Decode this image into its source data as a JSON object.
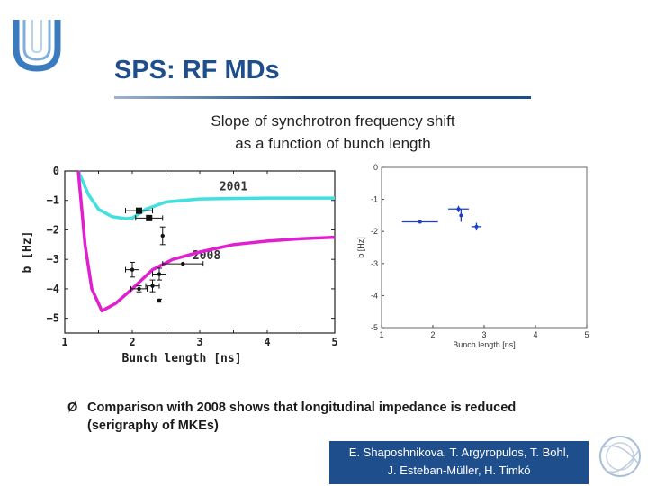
{
  "slide": {
    "title": "SPS: RF MDs",
    "subtitle_line1": "Slope of synchrotron frequency shift",
    "subtitle_line2": "as a function of bunch length",
    "bullet_marker": "Ø",
    "bullet_line1": "Comparison with 2008  shows that longitudinal impedance is reduced",
    "bullet_line2": "(serigraphy of MKEs)",
    "authors_line1": "E. Shaposhnikova, T. Argyropulos, T. Bohl,",
    "authors_line2": "J. Esteban-Müller, H. Timkó"
  },
  "chart_data": [
    {
      "type": "scatter",
      "xlabel": "Bunch length [ns]",
      "ylabel": "b [Hz]",
      "xlim": [
        1,
        5
      ],
      "ylim": [
        -5.5,
        0
      ],
      "xticks": [
        "1",
        "2",
        "3",
        "4",
        "5"
      ],
      "yticks": [
        "0",
        "−1",
        "−2",
        "−3",
        "−4",
        "−5"
      ],
      "annotations": [
        "2001",
        "2008"
      ],
      "colors": {
        "curve_2001": "#40e0e0",
        "curve_2008": "#e020d0"
      },
      "curves": [
        {
          "name": "2001",
          "x": [
            1.2,
            1.35,
            1.5,
            1.7,
            1.9,
            2.0,
            2.2,
            2.5,
            3.0,
            4.0,
            5.0
          ],
          "y": [
            0.0,
            -0.8,
            -1.3,
            -1.55,
            -1.62,
            -1.6,
            -1.3,
            -1.05,
            -0.95,
            -0.92,
            -0.92
          ]
        },
        {
          "name": "2008",
          "x": [
            1.2,
            1.3,
            1.4,
            1.55,
            1.75,
            2.0,
            2.3,
            2.6,
            3.0,
            3.5,
            4.0,
            4.5,
            5.0
          ],
          "y": [
            0.0,
            -2.5,
            -4.0,
            -4.75,
            -4.5,
            -4.0,
            -3.35,
            -3.0,
            -2.75,
            -2.5,
            -2.38,
            -2.3,
            -2.25
          ]
        }
      ],
      "series": [
        {
          "name": "2001",
          "points": [
            {
              "x": 2.1,
              "y": -1.35,
              "xerr": 0.2,
              "yerr": 0.0
            },
            {
              "x": 2.25,
              "y": -1.6,
              "xerr": 0.2,
              "yerr": 0.0
            }
          ]
        },
        {
          "name": "2008",
          "points": [
            {
              "x": 2.0,
              "y": -3.35,
              "xerr": 0.1,
              "yerr": 0.25
            },
            {
              "x": 2.1,
              "y": -4.0,
              "xerr": 0.12,
              "yerr": 0.1
            },
            {
              "x": 2.3,
              "y": -3.9,
              "xerr": 0.1,
              "yerr": 0.2
            },
            {
              "x": 2.4,
              "y": -3.5,
              "xerr": 0.1,
              "yerr": 0.2
            },
            {
              "x": 2.45,
              "y": -2.2,
              "xerr": 0.0,
              "yerr": 0.3
            },
            {
              "x": 2.75,
              "y": -3.15,
              "xerr": 0.3,
              "yerr": 0.0
            },
            {
              "x": 2.4,
              "y": -4.4,
              "xerr": 0.0,
              "yerr": 0.05
            }
          ]
        }
      ]
    },
    {
      "type": "scatter",
      "xlabel": "Bunch length [ns]",
      "ylabel": "b [Hz]",
      "xlim": [
        1,
        5
      ],
      "ylim": [
        -5,
        0
      ],
      "xticks": [
        "1",
        "2",
        "3",
        "4",
        "5"
      ],
      "yticks": [
        "0",
        "-1",
        "-2",
        "-3",
        "-4",
        "-5"
      ],
      "colors": {
        "points": "#1a3fd0"
      },
      "series": [
        {
          "points": [
            {
              "x": 1.75,
              "y": -1.7,
              "xerr": 0.35,
              "yerr": 0.0
            },
            {
              "x": 2.5,
              "y": -1.3,
              "xerr": 0.2,
              "yerr": 0.1
            },
            {
              "x": 2.55,
              "y": -1.5,
              "xerr": 0.0,
              "yerr": 0.2
            },
            {
              "x": 2.85,
              "y": -1.85,
              "xerr": 0.1,
              "yerr": 0.12
            }
          ]
        }
      ]
    }
  ]
}
